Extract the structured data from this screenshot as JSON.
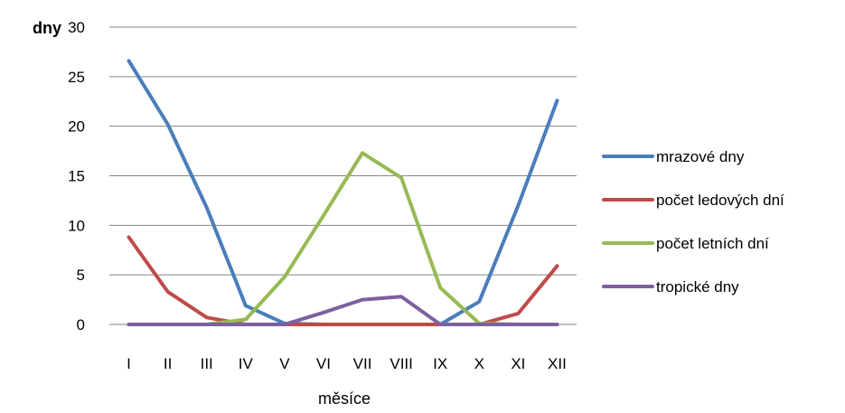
{
  "chart_data": {
    "type": "line",
    "title": "",
    "xlabel": "měsíce",
    "ylabel": "dny",
    "categories": [
      "I",
      "II",
      "III",
      "IV",
      "V",
      "VI",
      "VII",
      "VIII",
      "IX",
      "X",
      "XI",
      "XII"
    ],
    "ylim": [
      0,
      30
    ],
    "yticks": [
      "0",
      "5",
      "10",
      "15",
      "20",
      "25",
      "30"
    ],
    "grid": true,
    "legend_position": "right",
    "series": [
      {
        "name": "mrazové dny",
        "color": "#4A7EBB",
        "values": [
          26.6,
          20.2,
          11.8,
          1.9,
          0.1,
          0,
          0,
          0,
          0,
          2.3,
          12.0,
          22.6
        ]
      },
      {
        "name": "počet ledových dní",
        "color": "#BE4B48",
        "values": [
          8.8,
          3.3,
          0.7,
          0,
          0,
          0,
          0,
          0,
          0,
          0,
          1.1,
          5.9
        ]
      },
      {
        "name": "počet letních dní",
        "color": "#98B954",
        "values": [
          0,
          0,
          0,
          0.5,
          4.8,
          11.0,
          17.3,
          14.8,
          3.7,
          0.1,
          0,
          0
        ]
      },
      {
        "name": "tropické dny",
        "color": "#7D60A0",
        "values": [
          0,
          0,
          0,
          0,
          0,
          1.2,
          2.5,
          2.8,
          0,
          0,
          0,
          0
        ]
      }
    ]
  }
}
